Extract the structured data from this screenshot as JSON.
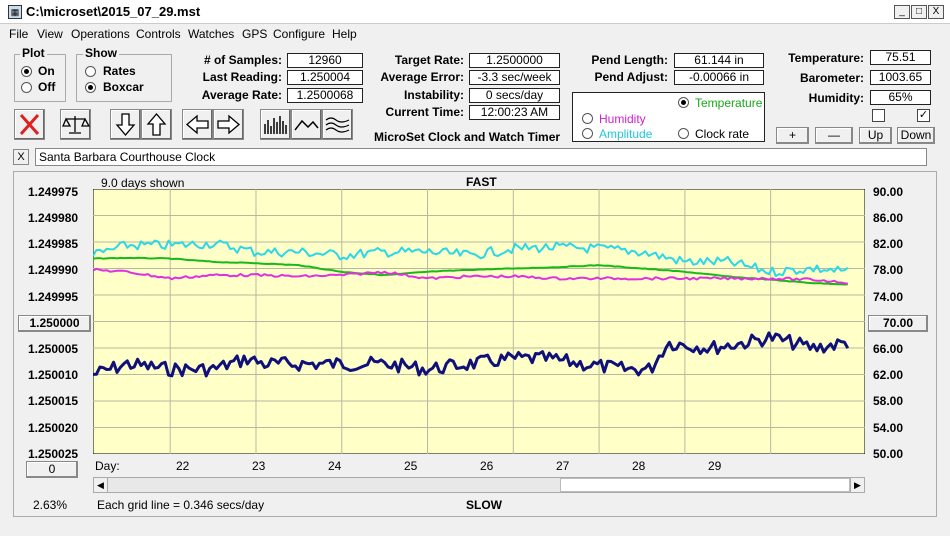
{
  "window": {
    "title": "C:\\microset\\2015_07_29.mst",
    "min": "_",
    "max": "□",
    "close": "X"
  },
  "menu": [
    "File",
    "View",
    "Operations",
    "Controls",
    "Watches",
    "GPS",
    "Configure",
    "Help"
  ],
  "plot_group": {
    "title": "Plot",
    "on": "On",
    "off": "Off",
    "selected": "On"
  },
  "show_group": {
    "title": "Show",
    "rates": "Rates",
    "boxcar": "Boxcar",
    "selected": "Boxcar"
  },
  "stats": {
    "samples_label": "# of Samples:",
    "samples": "12960",
    "last_label": "Last Reading:",
    "last": "1.250004",
    "avg_label": "Average Rate:",
    "avg": "1.2500068"
  },
  "targets": {
    "target_label": "Target Rate:",
    "target": "1.2500000",
    "error_label": "Average Error:",
    "error": "-3.3 sec/week",
    "instab_label": "Instability:",
    "instab": "0 secs/day",
    "time_label": "Current Time:",
    "time": "12:00:23 AM",
    "caption": "MicroSet Clock and Watch Timer"
  },
  "pend": {
    "length_label": "Pend Length:",
    "length": "61.144 in",
    "adjust_label": "Pend Adjust:",
    "adjust": "-0.00066 in"
  },
  "sensors_select": {
    "temperature": "Temperature",
    "humidity": "Humidity",
    "amplitude": "Amplitude",
    "clock_rate": "Clock rate"
  },
  "env": {
    "temp_label": "Temperature:",
    "temp": "75.51",
    "baro_label": "Barometer:",
    "baro": "1003.65",
    "hum_label": "Humidity:",
    "hum": "65%",
    "check2": "✓"
  },
  "env_buttons": {
    "plus": "+",
    "minus": "—",
    "up": "Up",
    "down": "Down"
  },
  "description": {
    "close": "X",
    "text": "Santa Barbara Courthouse Clock"
  },
  "graph": {
    "days_shown": "9.0 days shown",
    "top_label": "FAST",
    "bottom_label": "SLOW",
    "grid_note": "Each grid line = 0.346 secs/day",
    "day_label": "Day:",
    "left_ticks": [
      "1.249975",
      "1.249980",
      "1.249985",
      "1.249990",
      "1.249995",
      "1.250000",
      "1.250005",
      "1.250010",
      "1.250015",
      "1.250020",
      "1.250025"
    ],
    "right_ticks": [
      "90.00",
      "86.00",
      "82.00",
      "78.00",
      "74.00",
      "70.00",
      "66.00",
      "62.00",
      "58.00",
      "54.00",
      "50.00"
    ],
    "days": [
      "22",
      "23",
      "24",
      "25",
      "26",
      "27",
      "28",
      "29"
    ],
    "left_center": "1.250000",
    "right_center": "70.00",
    "zero_btn": "0",
    "percent": "2.63%",
    "colors": {
      "rate": "#10107a",
      "amplitude": "#28d8e8",
      "temperature": "#18b818",
      "humidity": "#e030e0",
      "bg": "#ffffc8"
    }
  },
  "chart_data": {
    "type": "line",
    "xlabel": "Day:",
    "xlim": [
      21.1,
      30.1
    ],
    "series": [
      {
        "name": "",
        "axis": "left",
        "points": [
          [
            21.1,
            1.25001
          ],
          [
            21.5,
            1.250008
          ],
          [
            22.0,
            1.250009
          ],
          [
            22.5,
            1.250009
          ],
          [
            22.9,
            1.250007
          ],
          [
            23.1,
            1.250008
          ],
          [
            23.5,
            1.250008
          ],
          [
            24.0,
            1.250008
          ],
          [
            24.5,
            1.250008
          ],
          [
            25.0,
            1.250009
          ],
          [
            25.5,
            1.250008
          ],
          [
            26.0,
            1.250007
          ],
          [
            26.4,
            1.250007
          ],
          [
            26.8,
            1.250008
          ],
          [
            27.3,
            1.250009
          ],
          [
            27.6,
            1.250009
          ],
          [
            27.8,
            1.250004
          ],
          [
            28.3,
            1.250005
          ],
          [
            28.7,
            1.250004
          ],
          [
            29.0,
            1.250003
          ],
          [
            29.5,
            1.250005
          ],
          [
            29.9,
            1.250004
          ]
        ]
      },
      {
        "name": "Amplitude",
        "axis": "right",
        "points": [
          [
            21.1,
            80
          ],
          [
            21.5,
            81.5
          ],
          [
            22.0,
            81.5
          ],
          [
            22.5,
            81.8
          ],
          [
            23.0,
            80.5
          ],
          [
            23.5,
            80.5
          ],
          [
            24.0,
            80
          ],
          [
            24.5,
            80.5
          ],
          [
            25.0,
            80.5
          ],
          [
            25.5,
            80
          ],
          [
            26.0,
            81
          ],
          [
            26.5,
            81.2
          ],
          [
            27.0,
            81
          ],
          [
            27.5,
            80.5
          ],
          [
            28.0,
            79
          ],
          [
            28.5,
            79
          ],
          [
            29.0,
            77.5
          ],
          [
            29.5,
            78
          ],
          [
            29.9,
            77.5
          ]
        ]
      },
      {
        "name": "Temperature",
        "axis": "right",
        "points": [
          [
            21.1,
            79.5
          ],
          [
            21.5,
            79.6
          ],
          [
            22.0,
            79.5
          ],
          [
            22.5,
            79
          ],
          [
            23.0,
            78.8
          ],
          [
            23.5,
            78.5
          ],
          [
            24.0,
            77.5
          ],
          [
            24.5,
            77
          ],
          [
            25.0,
            77.5
          ],
          [
            25.5,
            77.8
          ],
          [
            26.0,
            78
          ],
          [
            26.5,
            78.2
          ],
          [
            27.0,
            78.5
          ],
          [
            27.5,
            78
          ],
          [
            28.0,
            77.5
          ],
          [
            28.5,
            76.8
          ],
          [
            29.0,
            76.3
          ],
          [
            29.5,
            75.8
          ],
          [
            29.9,
            75.6
          ]
        ]
      },
      {
        "name": "Humidity",
        "axis": "right",
        "points": [
          [
            21.1,
            77.8
          ],
          [
            21.5,
            77.5
          ],
          [
            22.0,
            76.5
          ],
          [
            22.5,
            77
          ],
          [
            23.0,
            77
          ],
          [
            23.5,
            76.8
          ],
          [
            24.0,
            77
          ],
          [
            24.5,
            77.5
          ],
          [
            25.0,
            76.5
          ],
          [
            25.5,
            76.8
          ],
          [
            26.0,
            76.8
          ],
          [
            26.5,
            76.5
          ],
          [
            27.0,
            76.5
          ],
          [
            27.5,
            76.5
          ],
          [
            28.0,
            76.5
          ],
          [
            28.5,
            76.5
          ],
          [
            29.0,
            76.5
          ],
          [
            29.5,
            76.3
          ],
          [
            29.9,
            75.9
          ]
        ]
      }
    ],
    "ylim_left": [
      1.249975,
      1.250025
    ],
    "ylim_right": [
      50,
      90
    ],
    "grid": true
  }
}
